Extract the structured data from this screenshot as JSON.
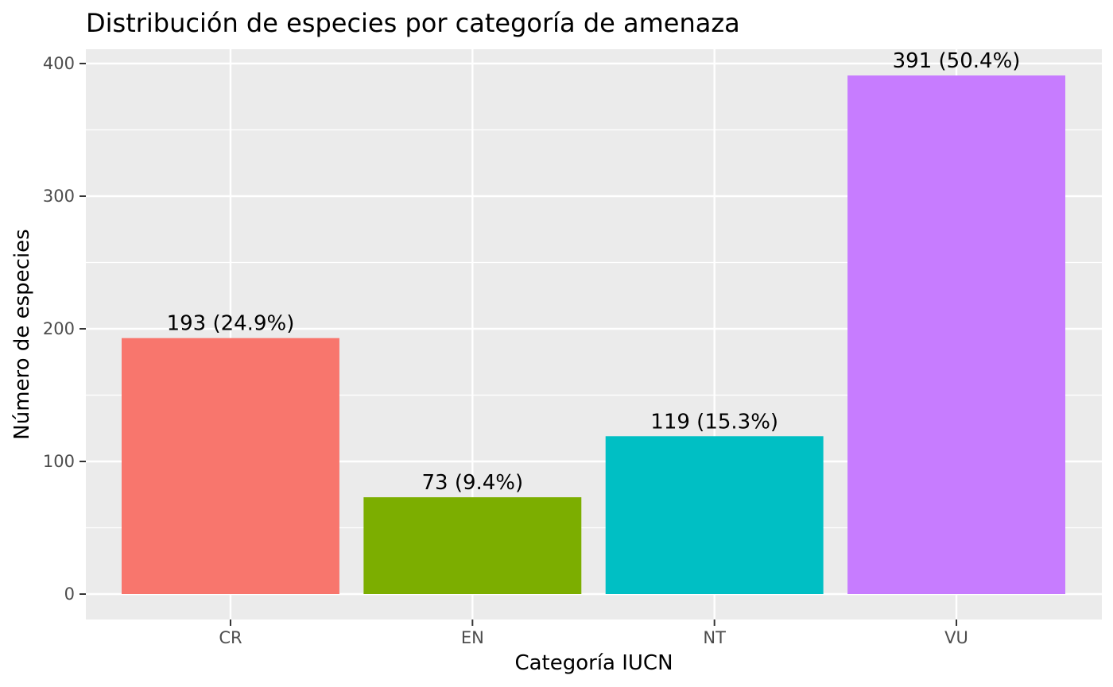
{
  "chart_data": {
    "type": "bar",
    "title": "Distribución de especies por categoría de amenaza",
    "xlabel": "Categoría IUCN",
    "ylabel": "Número de especies",
    "categories": [
      "CR",
      "EN",
      "NT",
      "VU"
    ],
    "values": [
      193,
      73,
      119,
      391
    ],
    "data_labels": [
      "193 (24.9%)",
      "73 (9.4%)",
      "119 (15.3%)",
      "391 (50.4%)"
    ],
    "colors": [
      "#F8766D",
      "#7CAE00",
      "#00BFC4",
      "#C77CFF"
    ],
    "ylim": [
      0,
      410
    ],
    "yticks": [
      0,
      100,
      200,
      300,
      400
    ],
    "grid": true,
    "legend": "none",
    "panel_background": "#EBEBEB",
    "grid_color": "#FFFFFF"
  }
}
